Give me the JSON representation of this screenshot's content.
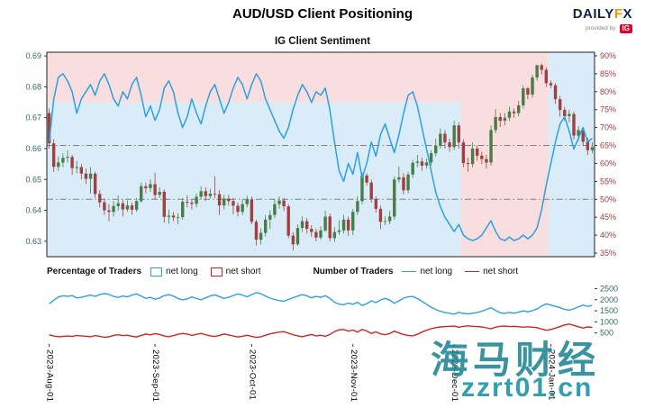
{
  "header": {
    "title": "AUD/USD Client Positioning",
    "subtitle": "IG Client Sentiment",
    "logo": {
      "daily": "DAILY",
      "f": "F",
      "x": "X",
      "provided_by": "provided by",
      "ig": "IG"
    }
  },
  "legend": {
    "pct_title": "Percentage of Traders",
    "pct_net_long": "net long",
    "pct_net_short": "net short",
    "num_title": "Number of Traders",
    "num_net_long": "net long",
    "num_net_short": "net short"
  },
  "watermark": {
    "line1": "海马财经",
    "line2": "zzrt01.cn"
  },
  "chart_data": {
    "type": "candlestick+line",
    "title": "AUD/USD Client Positioning",
    "subtitle": "IG Client Sentiment",
    "price_axis": {
      "min": 0.625,
      "max": 0.6912,
      "ticks": [
        0.69,
        0.68,
        0.67,
        0.66,
        0.65,
        0.64,
        0.63
      ]
    },
    "pct_axis": {
      "min": 34,
      "max": 91,
      "unit": "%",
      "ticks": [
        90,
        85,
        80,
        75,
        70,
        65,
        60,
        55,
        50,
        45,
        40,
        35
      ]
    },
    "hlines": [
      65,
      50
    ],
    "x_ticks": [
      {
        "i": 0,
        "label": "2023-Aug-01"
      },
      {
        "i": 23,
        "label": "2023-Sep-01"
      },
      {
        "i": 44,
        "label": "2023-Oct-01"
      },
      {
        "i": 66,
        "label": "2023-Nov-01"
      },
      {
        "i": 88,
        "label": "2023-Dec-01"
      },
      {
        "i": 109,
        "label": "2024-Jan-01"
      }
    ],
    "background_regions": [
      {
        "i0": 0,
        "i1": 90,
        "p0": 77,
        "p1": 91,
        "color": "red"
      },
      {
        "i0": 0,
        "i1": 90,
        "p0": 34,
        "p1": 77,
        "color": "blue"
      },
      {
        "i0": 90,
        "i1": 109,
        "p0": 34,
        "p1": 91,
        "color": "red"
      },
      {
        "i0": 109,
        "i1": 119,
        "p0": 34,
        "p1": 91,
        "color": "blue"
      }
    ],
    "candles": [
      [
        0.6715,
        0.673,
        0.66,
        0.6617
      ],
      [
        0.6617,
        0.663,
        0.6525,
        0.6541
      ],
      [
        0.6541,
        0.6575,
        0.6528,
        0.6555
      ],
      [
        0.6555,
        0.6585,
        0.654,
        0.657
      ],
      [
        0.657,
        0.6595,
        0.6555,
        0.6573
      ],
      [
        0.6573,
        0.658,
        0.6515,
        0.6537
      ],
      [
        0.6537,
        0.656,
        0.652,
        0.654
      ],
      [
        0.654,
        0.655,
        0.65,
        0.6519
      ],
      [
        0.6519,
        0.6535,
        0.6486,
        0.6502
      ],
      [
        0.6502,
        0.654,
        0.6454,
        0.6519
      ],
      [
        0.6519,
        0.6525,
        0.644,
        0.6453
      ],
      [
        0.6453,
        0.6465,
        0.641,
        0.6426
      ],
      [
        0.6426,
        0.6438,
        0.6385,
        0.64
      ],
      [
        0.64,
        0.642,
        0.6365,
        0.6395
      ],
      [
        0.6395,
        0.643,
        0.638,
        0.6414
      ],
      [
        0.6414,
        0.6448,
        0.64,
        0.6423
      ],
      [
        0.6423,
        0.6435,
        0.638,
        0.6403
      ],
      [
        0.6403,
        0.6432,
        0.6395,
        0.6416
      ],
      [
        0.6416,
        0.6425,
        0.6386,
        0.6402
      ],
      [
        0.6402,
        0.644,
        0.6395,
        0.643
      ],
      [
        0.643,
        0.649,
        0.6425,
        0.6478
      ],
      [
        0.6478,
        0.649,
        0.6455,
        0.6472
      ],
      [
        0.6472,
        0.65,
        0.646,
        0.6485
      ],
      [
        0.6485,
        0.6522,
        0.6435,
        0.645
      ],
      [
        0.645,
        0.6475,
        0.644,
        0.646
      ],
      [
        0.646,
        0.6468,
        0.636,
        0.6379
      ],
      [
        0.6379,
        0.6402,
        0.6357,
        0.6383
      ],
      [
        0.6383,
        0.6395,
        0.6365,
        0.6377
      ],
      [
        0.6377,
        0.639,
        0.6355,
        0.6378
      ],
      [
        0.6378,
        0.644,
        0.637,
        0.6428
      ],
      [
        0.6428,
        0.6449,
        0.641,
        0.6425
      ],
      [
        0.6425,
        0.6435,
        0.6403,
        0.6421
      ],
      [
        0.6421,
        0.6455,
        0.641,
        0.6444
      ],
      [
        0.6444,
        0.6478,
        0.6435,
        0.6462
      ],
      [
        0.6462,
        0.6474,
        0.643,
        0.6446
      ],
      [
        0.6446,
        0.647,
        0.6438,
        0.6454
      ],
      [
        0.6454,
        0.6511,
        0.644,
        0.6452
      ],
      [
        0.6452,
        0.6465,
        0.6385,
        0.6416
      ],
      [
        0.6416,
        0.645,
        0.6403,
        0.6438
      ],
      [
        0.6438,
        0.645,
        0.6415,
        0.643
      ],
      [
        0.643,
        0.644,
        0.6387,
        0.6415
      ],
      [
        0.6415,
        0.6425,
        0.638,
        0.6395
      ],
      [
        0.6395,
        0.6435,
        0.6385,
        0.642
      ],
      [
        0.642,
        0.6448,
        0.641,
        0.6435
      ],
      [
        0.6435,
        0.6445,
        0.6355,
        0.6363
      ],
      [
        0.6363,
        0.637,
        0.6286,
        0.6305
      ],
      [
        0.6305,
        0.6342,
        0.629,
        0.6327
      ],
      [
        0.6327,
        0.6385,
        0.6315,
        0.637
      ],
      [
        0.637,
        0.64,
        0.634,
        0.6385
      ],
      [
        0.6385,
        0.6435,
        0.6375,
        0.642
      ],
      [
        0.642,
        0.6445,
        0.6405,
        0.6432
      ],
      [
        0.6432,
        0.644,
        0.6398,
        0.6413
      ],
      [
        0.6413,
        0.642,
        0.631,
        0.6318
      ],
      [
        0.6318,
        0.633,
        0.627,
        0.629
      ],
      [
        0.629,
        0.6355,
        0.6285,
        0.6343
      ],
      [
        0.6343,
        0.638,
        0.633,
        0.6365
      ],
      [
        0.6365,
        0.6375,
        0.6325,
        0.634
      ],
      [
        0.634,
        0.6352,
        0.6315,
        0.633
      ],
      [
        0.633,
        0.634,
        0.63,
        0.6312
      ],
      [
        0.6312,
        0.6348,
        0.6305,
        0.6335
      ],
      [
        0.6335,
        0.6399,
        0.633,
        0.638
      ],
      [
        0.638,
        0.639,
        0.63,
        0.631
      ],
      [
        0.631,
        0.6345,
        0.6298,
        0.633
      ],
      [
        0.633,
        0.6368,
        0.632,
        0.6335
      ],
      [
        0.6335,
        0.6385,
        0.6325,
        0.637
      ],
      [
        0.637,
        0.638,
        0.6318,
        0.6335
      ],
      [
        0.6335,
        0.6405,
        0.632,
        0.6395
      ],
      [
        0.6395,
        0.6445,
        0.6385,
        0.643
      ],
      [
        0.643,
        0.6522,
        0.642,
        0.6513
      ],
      [
        0.6513,
        0.652,
        0.648,
        0.649
      ],
      [
        0.649,
        0.65,
        0.6425,
        0.6436
      ],
      [
        0.6436,
        0.6445,
        0.6393,
        0.6405
      ],
      [
        0.6405,
        0.6415,
        0.6339,
        0.6363
      ],
      [
        0.6363,
        0.638,
        0.6352,
        0.6365
      ],
      [
        0.6365,
        0.6398,
        0.6355,
        0.638
      ],
      [
        0.638,
        0.651,
        0.637,
        0.65
      ],
      [
        0.65,
        0.6542,
        0.649,
        0.6507
      ],
      [
        0.6507,
        0.652,
        0.6452,
        0.6465
      ],
      [
        0.6465,
        0.6525,
        0.6455,
        0.6516
      ],
      [
        0.6516,
        0.6563,
        0.6505,
        0.6554
      ],
      [
        0.6554,
        0.658,
        0.654,
        0.6558
      ],
      [
        0.6558,
        0.657,
        0.6528,
        0.6545
      ],
      [
        0.6545,
        0.6568,
        0.6535,
        0.6555
      ],
      [
        0.6555,
        0.6595,
        0.6545,
        0.6585
      ],
      [
        0.6585,
        0.6632,
        0.6575,
        0.661
      ],
      [
        0.661,
        0.6665,
        0.66,
        0.6648
      ],
      [
        0.6648,
        0.666,
        0.66,
        0.662
      ],
      [
        0.662,
        0.6632,
        0.659,
        0.6605
      ],
      [
        0.6605,
        0.669,
        0.6595,
        0.6675
      ],
      [
        0.6675,
        0.6685,
        0.66,
        0.662
      ],
      [
        0.662,
        0.663,
        0.654,
        0.6553
      ],
      [
        0.6553,
        0.657,
        0.6525,
        0.655
      ],
      [
        0.655,
        0.662,
        0.654,
        0.66
      ],
      [
        0.66,
        0.661,
        0.656,
        0.6577
      ],
      [
        0.6577,
        0.659,
        0.655,
        0.6566
      ],
      [
        0.6566,
        0.658,
        0.6535,
        0.6555
      ],
      [
        0.6555,
        0.6675,
        0.6545,
        0.666
      ],
      [
        0.666,
        0.6728,
        0.665,
        0.6702
      ],
      [
        0.6702,
        0.6715,
        0.667,
        0.669
      ],
      [
        0.669,
        0.6715,
        0.6675,
        0.67
      ],
      [
        0.67,
        0.6736,
        0.669,
        0.672
      ],
      [
        0.672,
        0.673,
        0.67,
        0.6715
      ],
      [
        0.6715,
        0.6755,
        0.6705,
        0.674
      ],
      [
        0.674,
        0.6805,
        0.673,
        0.6795
      ],
      [
        0.6795,
        0.68,
        0.676,
        0.6775
      ],
      [
        0.6775,
        0.684,
        0.6765,
        0.683
      ],
      [
        0.683,
        0.6871,
        0.682,
        0.687
      ],
      [
        0.687,
        0.6875,
        0.684,
        0.6855
      ],
      [
        0.6855,
        0.6863,
        0.68,
        0.6812
      ],
      [
        0.6812,
        0.682,
        0.6795,
        0.6805
      ],
      [
        0.6805,
        0.6812,
        0.6745,
        0.676
      ],
      [
        0.676,
        0.677,
        0.6703,
        0.6725
      ],
      [
        0.6725,
        0.6735,
        0.669,
        0.6705
      ],
      [
        0.6705,
        0.6725,
        0.6685,
        0.6712
      ],
      [
        0.6712,
        0.672,
        0.663,
        0.6642
      ],
      [
        0.6642,
        0.6672,
        0.6625,
        0.666
      ],
      [
        0.666,
        0.667,
        0.661,
        0.6622
      ],
      [
        0.6622,
        0.6635,
        0.658,
        0.6595
      ],
      [
        0.6595,
        0.662,
        0.6585,
        0.6605
      ]
    ],
    "sentiment_net_long_pct": [
      66,
      78,
      84,
      85,
      83,
      80,
      74,
      78,
      80,
      82,
      79,
      83,
      85,
      82,
      78,
      76,
      80,
      78,
      82,
      84,
      79,
      73,
      76,
      72,
      75,
      81,
      83,
      80,
      74,
      70,
      73,
      78,
      74,
      71,
      76,
      80,
      82,
      78,
      74,
      77,
      81,
      84,
      82,
      78,
      82,
      85,
      83,
      78,
      75,
      72,
      69,
      67,
      70,
      75,
      79,
      82,
      80,
      77,
      80,
      79,
      81,
      75,
      66,
      58,
      55,
      60,
      57,
      63,
      56,
      60,
      66,
      62,
      68,
      71,
      67,
      63,
      68,
      74,
      79,
      80,
      76,
      70,
      64,
      58,
      52,
      48,
      45,
      43,
      41,
      43,
      40,
      39,
      38.5,
      39,
      40,
      42,
      44,
      41,
      39,
      38.5,
      39.5,
      38.5,
      39,
      40,
      39,
      40,
      42,
      47,
      54,
      60,
      66,
      71,
      73,
      69,
      64,
      67,
      70,
      66,
      67
    ],
    "traders_axis": {
      "min": 0,
      "max": 2600,
      "ticks": [
        2500,
        2000,
        1500,
        1000,
        500
      ]
    },
    "traders_net_long": [
      1820,
      1980,
      2120,
      2180,
      2150,
      2190,
      2080,
      2110,
      2160,
      2210,
      2150,
      2230,
      2280,
      2240,
      2150,
      2100,
      2170,
      2130,
      2210,
      2260,
      2160,
      2060,
      2110,
      2020,
      2080,
      2180,
      2230,
      2160,
      2060,
      1990,
      2040,
      2130,
      2050,
      2000,
      2090,
      2170,
      2220,
      2140,
      2060,
      2110,
      2190,
      2260,
      2210,
      2130,
      2230,
      2320,
      2270,
      2160,
      2070,
      2010,
      1960,
      1930,
      2010,
      2090,
      2160,
      2230,
      2170,
      2090,
      2150,
      2110,
      2180,
      2060,
      1890,
      1800,
      1770,
      1850,
      1790,
      1880,
      1740,
      1820,
      1950,
      1870,
      1990,
      2060,
      1980,
      1840,
      1950,
      2070,
      2130,
      2150,
      2050,
      1930,
      1790,
      1660,
      1560,
      1480,
      1420,
      1390,
      1350,
      1430,
      1380,
      1360,
      1390,
      1420,
      1480,
      1560,
      1640,
      1520,
      1410,
      1380,
      1430,
      1390,
      1440,
      1500,
      1450,
      1510,
      1580,
      1720,
      1810,
      1760,
      1700,
      1640,
      1560,
      1530,
      1590,
      1680,
      1760,
      1700,
      1740
    ],
    "traders_net_short": [
      420,
      360,
      330,
      345,
      360,
      340,
      390,
      370,
      350,
      330,
      380,
      340,
      310,
      330,
      390,
      420,
      380,
      400,
      350,
      320,
      390,
      450,
      410,
      470,
      430,
      360,
      330,
      380,
      440,
      480,
      450,
      390,
      440,
      480,
      420,
      370,
      340,
      390,
      450,
      410,
      360,
      320,
      350,
      400,
      340,
      300,
      330,
      400,
      460,
      500,
      540,
      560,
      490,
      420,
      370,
      330,
      380,
      430,
      370,
      400,
      350,
      430,
      560,
      640,
      660,
      580,
      630,
      540,
      660,
      590,
      480,
      550,
      460,
      420,
      480,
      580,
      500,
      430,
      390,
      370,
      440,
      540,
      620,
      690,
      740,
      770,
      790,
      800,
      810,
      760,
      800,
      820,
      800,
      790,
      770,
      730,
      690,
      760,
      800,
      810,
      790,
      800,
      780,
      760,
      780,
      760,
      740,
      680,
      620,
      660,
      720,
      790,
      860,
      900,
      840,
      780,
      720,
      770,
      750
    ],
    "colors": {
      "up": "#4a7c47",
      "down": "#a04040",
      "sentiment": "#2da0e0",
      "short_line": "#cc2626",
      "bg_red": "#f8dede",
      "bg_blue": "#d9ecf8",
      "hline": "#808080",
      "price_label": "#2e6b5e",
      "pct_label": "#a03c3c",
      "watermark": "#17828f"
    }
  }
}
